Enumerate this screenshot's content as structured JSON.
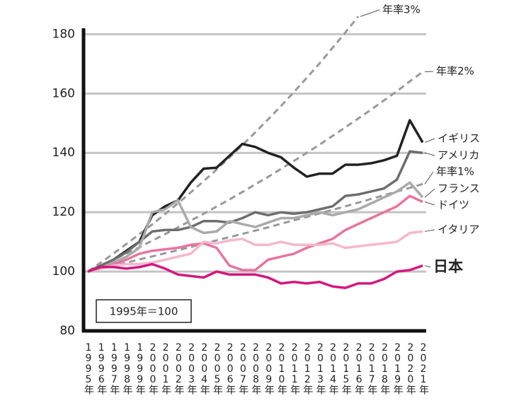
{
  "chart_data": {
    "type": "line",
    "legend_note": "1995年＝100",
    "categories": [
      "1995年",
      "1996年",
      "1997年",
      "1998年",
      "1999年",
      "2000年",
      "2001年",
      "2002年",
      "2003年",
      "2004年",
      "2005年",
      "2006年",
      "2007年",
      "2008年",
      "2009年",
      "2010年",
      "2011年",
      "2012年",
      "2013年",
      "2014年",
      "2015年",
      "2016年",
      "2017年",
      "2018年",
      "2019年",
      "2020年",
      "2021年"
    ],
    "ylim": [
      80,
      182
    ],
    "yticks": [
      80,
      100,
      120,
      140,
      160,
      180
    ],
    "grid": true,
    "series": [
      {
        "name": "年率3%",
        "color": "#999999",
        "line_style": "dashed",
        "values": [
          100,
          103,
          106.1,
          109.3,
          112.6,
          115.9,
          119.4,
          123.0,
          126.7,
          130.5,
          134.4,
          138.4,
          142.6,
          146.9,
          151.3,
          155.8,
          160.5,
          165.3,
          170.2,
          175.4,
          180.6,
          186.0,
          null,
          null,
          null,
          null,
          null
        ]
      },
      {
        "name": "年率2%",
        "color": "#999999",
        "line_style": "dashed",
        "values": [
          100,
          102,
          104.0,
          106.1,
          108.2,
          110.4,
          112.6,
          114.9,
          117.2,
          119.5,
          121.9,
          124.3,
          126.8,
          129.4,
          131.9,
          134.6,
          137.3,
          140.0,
          142.8,
          145.7,
          148.6,
          151.6,
          154.6,
          157.7,
          160.8,
          164.1,
          167.3
        ]
      },
      {
        "name": "イギリス",
        "color": "#222222",
        "line_style": "solid",
        "values": [
          100,
          102,
          104,
          107,
          110,
          119,
          122,
          124,
          130,
          134.7,
          135,
          139,
          143,
          142,
          140,
          138.5,
          135,
          132,
          133,
          133,
          136,
          136,
          136.5,
          137.5,
          139,
          151,
          143.5
        ]
      },
      {
        "name": "アメリカ",
        "color": "#6e6e6e",
        "line_style": "solid",
        "values": [
          100,
          102,
          104,
          106.5,
          110,
          113.5,
          114,
          114,
          115,
          117,
          117,
          116.5,
          118,
          120,
          119,
          120,
          119.5,
          120,
          121,
          122,
          125.5,
          126,
          127,
          128,
          131,
          140.5,
          140
        ]
      },
      {
        "name": "年率1%",
        "color": "#999999",
        "line_style": "dashed",
        "values": [
          100,
          101,
          102.0,
          103.0,
          104.1,
          105.1,
          106.2,
          107.2,
          108.3,
          109.4,
          110.5,
          111.6,
          112.7,
          113.8,
          114.9,
          116.1,
          117.3,
          118.4,
          119.6,
          120.8,
          122.0,
          123.2,
          124.5,
          125.7,
          127.0,
          128.2,
          129.5
        ]
      },
      {
        "name": "フランス",
        "color": "#aaaaaa",
        "line_style": "solid",
        "values": [
          100,
          101,
          103,
          105,
          108,
          120,
          121,
          124,
          115,
          113,
          113.5,
          117,
          116,
          115,
          116.5,
          118,
          118,
          119,
          120,
          119,
          120,
          121,
          123,
          125,
          127,
          130,
          125
        ]
      },
      {
        "name": "ドイツ",
        "color": "#e8749f",
        "line_style": "solid",
        "values": [
          100,
          101,
          102.5,
          104,
          106,
          107,
          107.5,
          108,
          109,
          109.5,
          108,
          102,
          100.5,
          100.5,
          104,
          105,
          106,
          108,
          109.5,
          111,
          114,
          116,
          118,
          120,
          122,
          125.5,
          123.5
        ]
      },
      {
        "name": "イタリア",
        "color": "#f5b8cc",
        "line_style": "solid",
        "values": [
          100,
          101,
          102,
          102.5,
          102.5,
          103,
          104,
          105,
          106,
          110,
          109.5,
          110.5,
          111,
          109,
          109,
          110,
          109,
          109,
          109,
          109.5,
          108,
          108.5,
          109,
          109.5,
          110,
          113,
          113.5
        ]
      },
      {
        "name": "日本",
        "color": "#d4177f",
        "line_style": "solid",
        "values": [
          100,
          101.5,
          101.5,
          101,
          101.5,
          102.5,
          101,
          99,
          98.5,
          98,
          100,
          99,
          99,
          99,
          98,
          96,
          96.5,
          96,
          96.5,
          95,
          94.5,
          96,
          96,
          97.5,
          100,
          100.5,
          102
        ]
      }
    ]
  }
}
